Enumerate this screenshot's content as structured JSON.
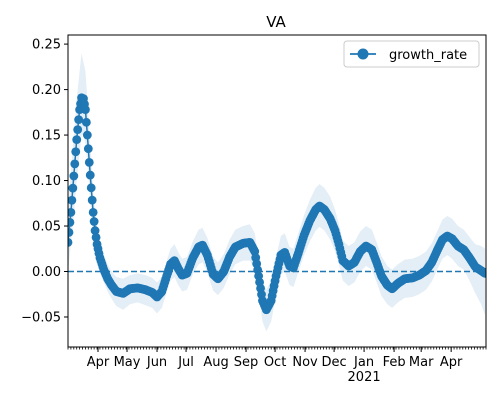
{
  "chart_data": {
    "type": "line",
    "title": "VA",
    "xlabel": "",
    "ylabel": "",
    "ylim": [
      -0.083,
      0.26
    ],
    "yticks": [
      {
        "value": 0.25,
        "label": "0.25"
      },
      {
        "value": 0.2,
        "label": "0.20"
      },
      {
        "value": 0.15,
        "label": "0.15"
      },
      {
        "value": 0.1,
        "label": "0.10"
      },
      {
        "value": 0.05,
        "label": "0.05"
      },
      {
        "value": 0.0,
        "label": "0.00"
      },
      {
        "value": -0.05,
        "label": "−0.05"
      }
    ],
    "xlim": [
      "2020-03-01",
      "2021-05-07"
    ],
    "xticks": [
      {
        "value": "2020-04-01",
        "label": "Apr"
      },
      {
        "value": "2020-05-01",
        "label": "May"
      },
      {
        "value": "2020-06-01",
        "label": "Jun"
      },
      {
        "value": "2020-07-01",
        "label": "Jul"
      },
      {
        "value": "2020-08-01",
        "label": "Aug"
      },
      {
        "value": "2020-09-01",
        "label": "Sep"
      },
      {
        "value": "2020-10-01",
        "label": "Oct"
      },
      {
        "value": "2020-11-01",
        "label": "Nov"
      },
      {
        "value": "2020-12-01",
        "label": "Dec"
      },
      {
        "value": "2021-01-01",
        "label": "Jan\n2021"
      },
      {
        "value": "2021-02-01",
        "label": "Feb"
      },
      {
        "value": "2021-03-01",
        "label": "Mar"
      },
      {
        "value": "2021-04-01",
        "label": "Apr"
      }
    ],
    "reference_line": {
      "y": 0,
      "style": "dashed"
    },
    "legend": {
      "position": "top-right",
      "entries": [
        "growth_rate"
      ]
    },
    "grid": false,
    "series": [
      {
        "name": "growth_rate",
        "color": "#1f77b4",
        "band_color": "#1f77b4",
        "points": [
          {
            "x": "2020-03-01",
            "y": 0.032,
            "lo": 0.0,
            "hi": 0.07
          },
          {
            "x": "2020-03-04",
            "y": 0.065,
            "lo": 0.03,
            "hi": 0.11
          },
          {
            "x": "2020-03-07",
            "y": 0.105,
            "lo": 0.06,
            "hi": 0.15
          },
          {
            "x": "2020-03-10",
            "y": 0.145,
            "lo": 0.1,
            "hi": 0.19
          },
          {
            "x": "2020-03-13",
            "y": 0.178,
            "lo": 0.13,
            "hi": 0.22
          },
          {
            "x": "2020-03-15",
            "y": 0.191,
            "lo": 0.15,
            "hi": 0.24
          },
          {
            "x": "2020-03-17",
            "y": 0.19,
            "lo": 0.15,
            "hi": 0.23
          },
          {
            "x": "2020-03-19",
            "y": 0.178,
            "lo": 0.14,
            "hi": 0.22
          },
          {
            "x": "2020-03-21",
            "y": 0.15,
            "lo": 0.12,
            "hi": 0.19
          },
          {
            "x": "2020-03-23",
            "y": 0.12,
            "lo": 0.09,
            "hi": 0.155
          },
          {
            "x": "2020-03-25",
            "y": 0.092,
            "lo": 0.065,
            "hi": 0.125
          },
          {
            "x": "2020-03-27",
            "y": 0.065,
            "lo": 0.045,
            "hi": 0.09
          },
          {
            "x": "2020-03-29",
            "y": 0.045,
            "lo": 0.028,
            "hi": 0.065
          },
          {
            "x": "2020-03-31",
            "y": 0.03,
            "lo": 0.015,
            "hi": 0.048
          },
          {
            "x": "2020-04-03",
            "y": 0.015,
            "lo": 0.0,
            "hi": 0.032
          },
          {
            "x": "2020-04-07",
            "y": 0.002,
            "lo": -0.012,
            "hi": 0.018
          },
          {
            "x": "2020-04-11",
            "y": -0.008,
            "lo": -0.022,
            "hi": 0.008
          },
          {
            "x": "2020-04-15",
            "y": -0.015,
            "lo": -0.03,
            "hi": 0.0
          },
          {
            "x": "2020-04-20",
            "y": -0.022,
            "lo": -0.038,
            "hi": -0.006
          },
          {
            "x": "2020-04-27",
            "y": -0.024,
            "lo": -0.042,
            "hi": -0.008
          },
          {
            "x": "2020-05-04",
            "y": -0.019,
            "lo": -0.036,
            "hi": -0.004
          },
          {
            "x": "2020-05-12",
            "y": -0.018,
            "lo": -0.034,
            "hi": -0.002
          },
          {
            "x": "2020-05-20",
            "y": -0.02,
            "lo": -0.037,
            "hi": -0.004
          },
          {
            "x": "2020-05-27",
            "y": -0.023,
            "lo": -0.04,
            "hi": -0.007
          },
          {
            "x": "2020-06-01",
            "y": -0.028,
            "lo": -0.046,
            "hi": -0.012
          },
          {
            "x": "2020-06-06",
            "y": -0.022,
            "lo": -0.04,
            "hi": -0.006
          },
          {
            "x": "2020-06-11",
            "y": -0.005,
            "lo": -0.023,
            "hi": 0.012
          },
          {
            "x": "2020-06-15",
            "y": 0.008,
            "lo": -0.01,
            "hi": 0.025
          },
          {
            "x": "2020-06-19",
            "y": 0.012,
            "lo": -0.006,
            "hi": 0.03
          },
          {
            "x": "2020-06-23",
            "y": 0.003,
            "lo": -0.015,
            "hi": 0.021
          },
          {
            "x": "2020-06-27",
            "y": -0.004,
            "lo": -0.022,
            "hi": 0.014
          },
          {
            "x": "2020-07-02",
            "y": -0.002,
            "lo": -0.02,
            "hi": 0.016
          },
          {
            "x": "2020-07-08",
            "y": 0.015,
            "lo": -0.003,
            "hi": 0.033
          },
          {
            "x": "2020-07-14",
            "y": 0.027,
            "lo": 0.008,
            "hi": 0.046
          },
          {
            "x": "2020-07-18",
            "y": 0.029,
            "lo": 0.01,
            "hi": 0.048
          },
          {
            "x": "2020-07-23",
            "y": 0.018,
            "lo": -0.001,
            "hi": 0.037
          },
          {
            "x": "2020-07-29",
            "y": -0.003,
            "lo": -0.021,
            "hi": 0.016
          },
          {
            "x": "2020-08-03",
            "y": -0.008,
            "lo": -0.026,
            "hi": 0.01
          },
          {
            "x": "2020-08-09",
            "y": 0.0,
            "lo": -0.018,
            "hi": 0.019
          },
          {
            "x": "2020-08-15",
            "y": 0.016,
            "lo": -0.003,
            "hi": 0.035
          },
          {
            "x": "2020-08-21",
            "y": 0.027,
            "lo": 0.008,
            "hi": 0.046
          },
          {
            "x": "2020-08-29",
            "y": 0.031,
            "lo": 0.012,
            "hi": 0.05
          },
          {
            "x": "2020-09-05",
            "y": 0.032,
            "lo": 0.012,
            "hi": 0.052
          },
          {
            "x": "2020-09-10",
            "y": 0.022,
            "lo": 0.002,
            "hi": 0.042
          },
          {
            "x": "2020-09-14",
            "y": -0.005,
            "lo": -0.026,
            "hi": 0.016
          },
          {
            "x": "2020-09-18",
            "y": -0.032,
            "lo": -0.055,
            "hi": -0.01
          },
          {
            "x": "2020-09-22",
            "y": -0.042,
            "lo": -0.066,
            "hi": -0.02
          },
          {
            "x": "2020-09-27",
            "y": -0.032,
            "lo": -0.055,
            "hi": -0.01
          },
          {
            "x": "2020-10-02",
            "y": -0.005,
            "lo": -0.026,
            "hi": 0.016
          },
          {
            "x": "2020-10-07",
            "y": 0.018,
            "lo": -0.003,
            "hi": 0.039
          },
          {
            "x": "2020-10-11",
            "y": 0.021,
            "lo": 0.0,
            "hi": 0.042
          },
          {
            "x": "2020-10-16",
            "y": 0.006,
            "lo": -0.015,
            "hi": 0.027
          },
          {
            "x": "2020-10-20",
            "y": 0.004,
            "lo": -0.017,
            "hi": 0.025
          },
          {
            "x": "2020-10-25",
            "y": 0.02,
            "lo": -0.001,
            "hi": 0.042
          },
          {
            "x": "2020-10-31",
            "y": 0.04,
            "lo": 0.018,
            "hi": 0.062
          },
          {
            "x": "2020-11-06",
            "y": 0.056,
            "lo": 0.033,
            "hi": 0.079
          },
          {
            "x": "2020-11-12",
            "y": 0.068,
            "lo": 0.045,
            "hi": 0.092
          },
          {
            "x": "2020-11-16",
            "y": 0.072,
            "lo": 0.049,
            "hi": 0.096
          },
          {
            "x": "2020-11-21",
            "y": 0.068,
            "lo": 0.045,
            "hi": 0.092
          },
          {
            "x": "2020-11-27",
            "y": 0.058,
            "lo": 0.035,
            "hi": 0.082
          },
          {
            "x": "2020-12-02",
            "y": 0.045,
            "lo": 0.022,
            "hi": 0.068
          },
          {
            "x": "2020-12-06",
            "y": 0.03,
            "lo": 0.008,
            "hi": 0.052
          },
          {
            "x": "2020-12-10",
            "y": 0.012,
            "lo": -0.01,
            "hi": 0.034
          },
          {
            "x": "2020-12-16",
            "y": 0.006,
            "lo": -0.016,
            "hi": 0.028
          },
          {
            "x": "2020-12-22",
            "y": 0.01,
            "lo": -0.012,
            "hi": 0.032
          },
          {
            "x": "2020-12-28",
            "y": 0.022,
            "lo": 0.0,
            "hi": 0.044
          },
          {
            "x": "2021-01-03",
            "y": 0.028,
            "lo": 0.006,
            "hi": 0.05
          },
          {
            "x": "2021-01-09",
            "y": 0.024,
            "lo": 0.002,
            "hi": 0.046
          },
          {
            "x": "2021-01-14",
            "y": 0.01,
            "lo": -0.012,
            "hi": 0.032
          },
          {
            "x": "2021-01-19",
            "y": -0.005,
            "lo": -0.027,
            "hi": 0.017
          },
          {
            "x": "2021-01-25",
            "y": -0.015,
            "lo": -0.036,
            "hi": 0.006
          },
          {
            "x": "2021-01-30",
            "y": -0.019,
            "lo": -0.04,
            "hi": 0.002
          },
          {
            "x": "2021-02-05",
            "y": -0.013,
            "lo": -0.034,
            "hi": 0.008
          },
          {
            "x": "2021-02-12",
            "y": -0.008,
            "lo": -0.029,
            "hi": 0.013
          },
          {
            "x": "2021-02-20",
            "y": -0.007,
            "lo": -0.028,
            "hi": 0.014
          },
          {
            "x": "2021-02-27",
            "y": -0.004,
            "lo": -0.025,
            "hi": 0.017
          },
          {
            "x": "2021-03-06",
            "y": 0.001,
            "lo": -0.02,
            "hi": 0.022
          },
          {
            "x": "2021-03-12",
            "y": 0.01,
            "lo": -0.011,
            "hi": 0.031
          },
          {
            "x": "2021-03-18",
            "y": 0.024,
            "lo": 0.003,
            "hi": 0.045
          },
          {
            "x": "2021-03-23",
            "y": 0.035,
            "lo": 0.014,
            "hi": 0.057
          },
          {
            "x": "2021-03-28",
            "y": 0.039,
            "lo": 0.018,
            "hi": 0.061
          },
          {
            "x": "2021-04-02",
            "y": 0.036,
            "lo": 0.014,
            "hi": 0.058
          },
          {
            "x": "2021-04-08",
            "y": 0.028,
            "lo": 0.006,
            "hi": 0.05
          },
          {
            "x": "2021-04-14",
            "y": 0.024,
            "lo": 0.002,
            "hi": 0.046
          },
          {
            "x": "2021-04-20",
            "y": 0.015,
            "lo": -0.01,
            "hi": 0.038
          },
          {
            "x": "2021-04-26",
            "y": 0.005,
            "lo": -0.024,
            "hi": 0.03
          },
          {
            "x": "2021-05-02",
            "y": 0.001,
            "lo": -0.036,
            "hi": 0.028
          },
          {
            "x": "2021-05-06",
            "y": -0.002,
            "lo": -0.048,
            "hi": 0.025
          }
        ]
      }
    ]
  }
}
